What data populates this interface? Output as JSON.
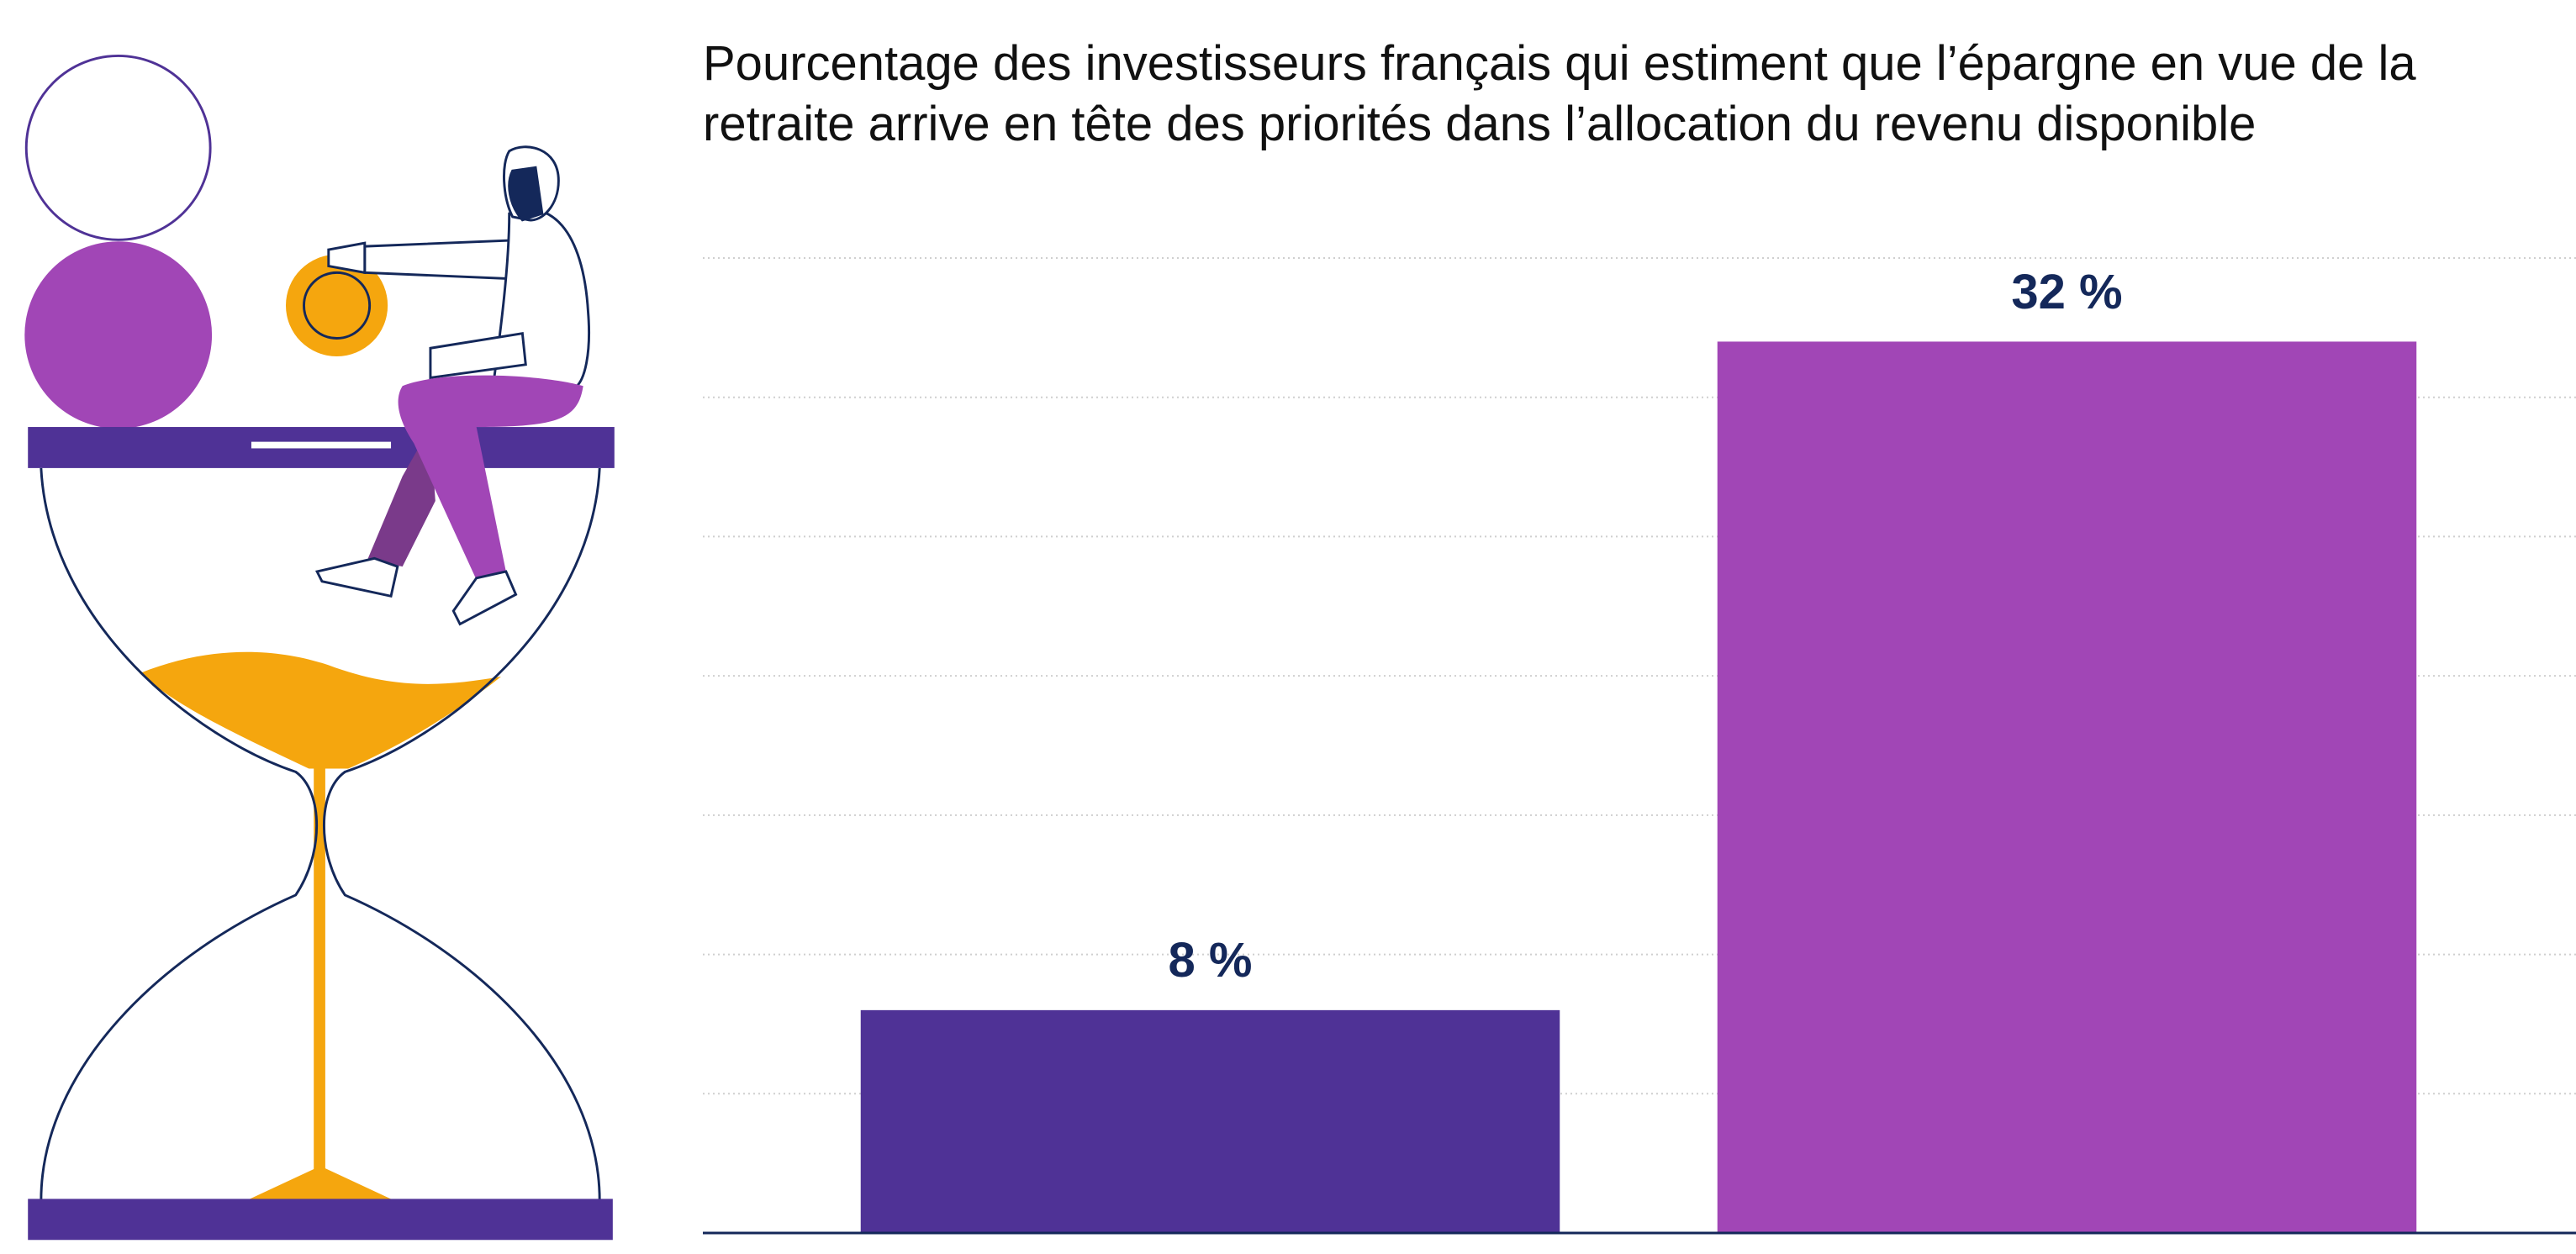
{
  "chart_data": {
    "type": "bar",
    "title": "Pourcentage des investisseurs français qui estiment que l’épargne en vue de la retraite arrive en tête des priorités dans l’allocation du revenu disponible",
    "categories": [
      null,
      null
    ],
    "values": [
      8,
      32
    ],
    "value_labels": [
      "8 %",
      "32 %"
    ],
    "colors": [
      "#4f3296",
      "#a146b6"
    ],
    "ylim": [
      0,
      35
    ],
    "yticks": [
      0,
      5,
      10,
      15,
      20,
      25,
      30,
      35
    ],
    "grid": true
  }
}
